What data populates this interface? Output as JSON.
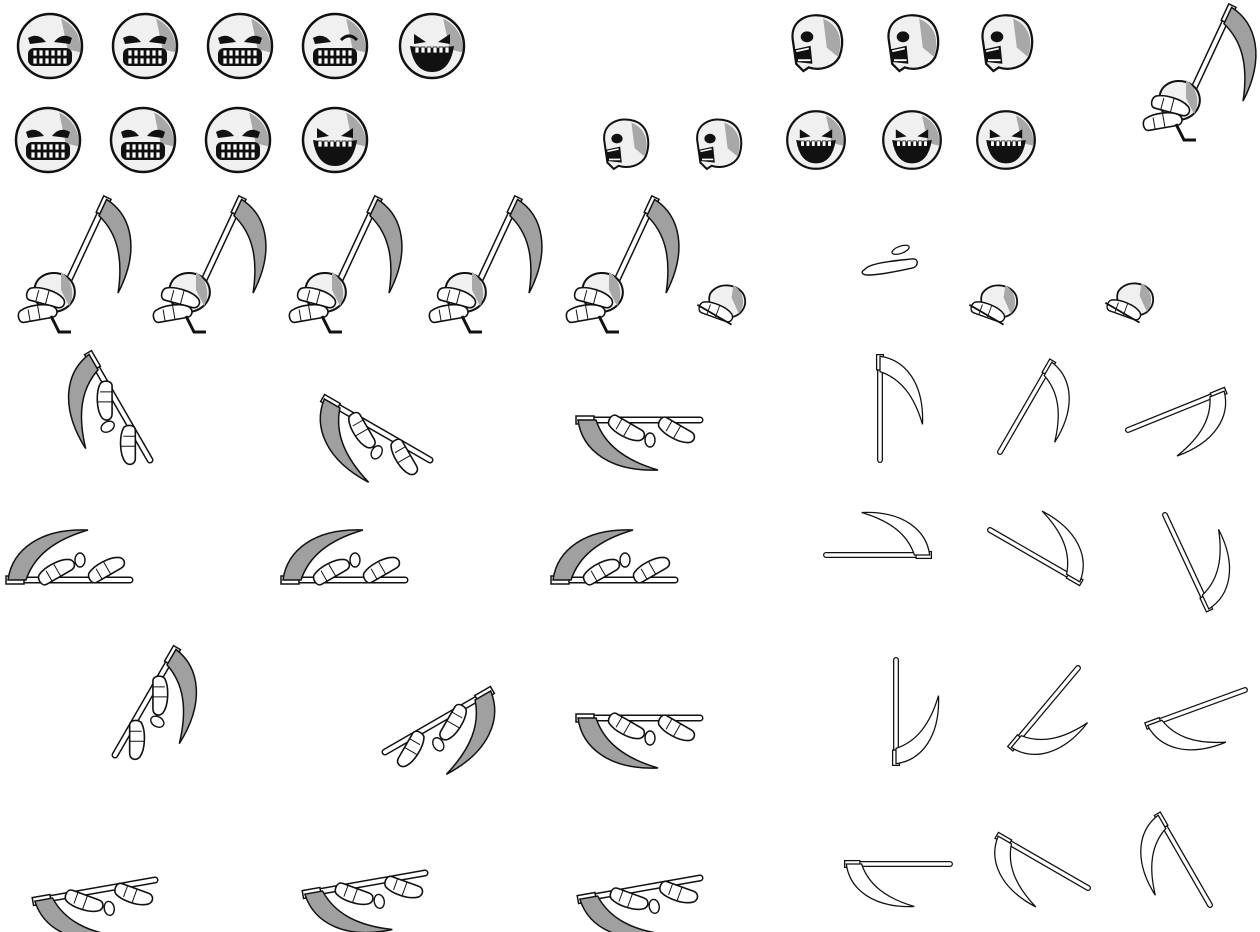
{
  "sprite_sheet": {
    "background": "#ffffff",
    "palette": {
      "outline": "#111111",
      "skull_fill": "#f0f0f0",
      "skull_shade": "#a8a8a8",
      "mouth": "#111111",
      "teeth": "#ffffff",
      "blade_shade": "#a0a0a0",
      "hand_fill": "#ffffff"
    },
    "rows": [
      {
        "name": "skull-expressions-row-1",
        "kinds": [
          "skull-grimace",
          "skull-grimace",
          "skull-squint",
          "skull-wink",
          "skull-laugh",
          "skull-side-scream",
          "skull-side-scream",
          "skull-side-scream"
        ]
      },
      {
        "name": "skull-expressions-row-2",
        "kinds": [
          "skull-grimace",
          "skull-grimace",
          "skull-squint",
          "skull-laugh",
          "skull-profile-small",
          "skull-profile-small",
          "skull-front-grin",
          "skull-front-grin",
          "skull-front-grin"
        ]
      },
      {
        "name": "reaper-hands-carry-scythe",
        "kinds": [
          "carry",
          "carry",
          "carry",
          "carry",
          "carry",
          "hand",
          "hand-fragment",
          "hand",
          "hand"
        ]
      },
      {
        "name": "scythe-swing-row-1",
        "kinds": [
          "swing",
          "swing",
          "swing",
          "scythe-only",
          "scythe-only",
          "scythe-only"
        ]
      },
      {
        "name": "scythe-swing-row-2",
        "kinds": [
          "swing",
          "swing",
          "swing",
          "scythe-only",
          "scythe-only",
          "scythe-only"
        ]
      },
      {
        "name": "scythe-swing-row-3",
        "kinds": [
          "swing",
          "swing",
          "swing",
          "scythe-only",
          "scythe-only",
          "scythe-only"
        ]
      },
      {
        "name": "scythe-swing-row-4",
        "kinds": [
          "swing",
          "swing",
          "swing",
          "scythe-only",
          "scythe-only",
          "scythe-only"
        ]
      }
    ]
  }
}
